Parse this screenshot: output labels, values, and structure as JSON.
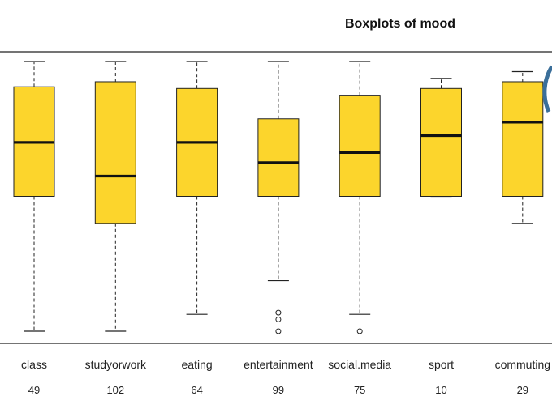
{
  "chart_data": {
    "type": "boxplot",
    "title": "Boxplots of mood",
    "xlabel": "",
    "ylabel": "",
    "box_color": "#fcd52c",
    "box_stroke": "#222222",
    "categories": [
      "class",
      "studyorwork",
      "eating",
      "entertainment",
      "social.media",
      "sport",
      "commuting"
    ],
    "counts": [
      "49",
      "102",
      "64",
      "99",
      "75",
      "10",
      "29"
    ],
    "boxes": [
      {
        "whisker_low": 0,
        "q1": 4,
        "median": 5.6,
        "q3": 7.25,
        "whisker_high": 8,
        "outliers": []
      },
      {
        "whisker_low": 0,
        "q1": 3.2,
        "median": 4.6,
        "q3": 7.4,
        "whisker_high": 8,
        "outliers": []
      },
      {
        "whisker_low": 0.5,
        "q1": 4,
        "median": 5.6,
        "q3": 7.2,
        "whisker_high": 8,
        "outliers": []
      },
      {
        "whisker_low": 1.5,
        "q1": 4,
        "median": 5,
        "q3": 6.3,
        "whisker_high": 8,
        "outliers": [
          0,
          0.35,
          0.55
        ]
      },
      {
        "whisker_low": 0.5,
        "q1": 4,
        "median": 5.3,
        "q3": 7.0,
        "whisker_high": 8,
        "outliers": [
          0
        ]
      },
      {
        "whisker_low": 4,
        "q1": 4,
        "median": 5.8,
        "q3": 7.2,
        "whisker_high": 7.5,
        "outliers": []
      },
      {
        "whisker_low": 3.2,
        "q1": 4,
        "median": 6.2,
        "q3": 7.4,
        "whisker_high": 7.7,
        "outliers": []
      }
    ],
    "ylim": [
      -0.3,
      8.3
    ],
    "grid": false
  }
}
